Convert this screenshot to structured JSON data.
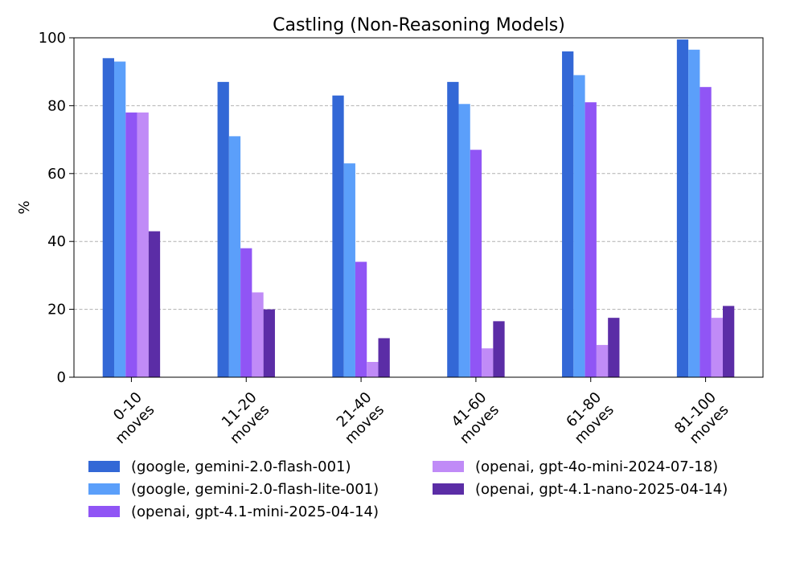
{
  "chart_data": {
    "type": "bar",
    "title": "Castling (Non-Reasoning Models)",
    "xlabel": "",
    "ylabel": "%",
    "ylim": [
      0,
      100
    ],
    "yticks": [
      0,
      20,
      40,
      60,
      80,
      100
    ],
    "grid": "y-dashed",
    "legend_placement": "bottom",
    "categories": [
      [
        "0-10",
        "moves"
      ],
      [
        "11-20",
        "moves"
      ],
      [
        "21-40",
        "moves"
      ],
      [
        "41-60",
        "moves"
      ],
      [
        "61-80",
        "moves"
      ],
      [
        "81-100",
        "moves"
      ]
    ],
    "series": [
      {
        "name": "(google, gemini-2.0-flash-001)",
        "color": "#3368d6",
        "values": [
          94,
          87,
          83,
          87,
          96,
          99.5
        ]
      },
      {
        "name": "(google, gemini-2.0-flash-lite-001)",
        "color": "#5b9ffa",
        "values": [
          93,
          71,
          63,
          80.5,
          89,
          96.5
        ]
      },
      {
        "name": "(openai, gpt-4.1-mini-2025-04-14)",
        "color": "#9055f5",
        "values": [
          78,
          38,
          34,
          67,
          81,
          85.5
        ]
      },
      {
        "name": "(openai, gpt-4o-mini-2024-07-18)",
        "color": "#c08bf7",
        "values": [
          78,
          25,
          4.5,
          8.5,
          9.5,
          17.5
        ]
      },
      {
        "name": "(openai, gpt-4.1-nano-2025-04-14)",
        "color": "#5b2da6",
        "values": [
          43,
          20,
          11.5,
          16.5,
          17.5,
          21
        ]
      }
    ]
  }
}
